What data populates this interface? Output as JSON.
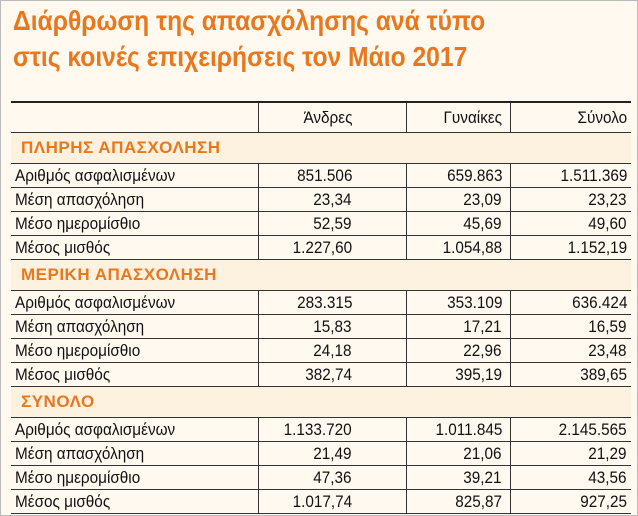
{
  "title": [
    "Διάρθρωση της απασχόλησης ανά τύπο",
    "στις κοινές επιχειρήσεις τον Μάιο 2017"
  ],
  "table": {
    "columns": [
      "Άνδρες",
      "Γυναίκες",
      "Σύνολο"
    ],
    "sections": [
      {
        "title": "ΠΛΗΡΗΣ ΑΠΑΣΧΟΛΗΣΗ",
        "rows": [
          {
            "label": "Αριθμός ασφαλισμένων",
            "values": [
              "851.506",
              "659.863",
              "1.511.369"
            ]
          },
          {
            "label": "Μέση απασχόληση",
            "values": [
              "23,34",
              "23,09",
              "23,23"
            ]
          },
          {
            "label": "Μέσο ημερομίσθιο",
            "values": [
              "52,59",
              "45,69",
              "49,60"
            ]
          },
          {
            "label": "Μέσος μισθός",
            "values": [
              "1.227,60",
              "1.054,88",
              "1.152,19"
            ]
          }
        ]
      },
      {
        "title": "ΜΕΡΙΚΗ ΑΠΑΣΧΟΛΗΣΗ",
        "rows": [
          {
            "label": "Αριθμός ασφαλισμένων",
            "values": [
              "283.315",
              "353.109",
              "636.424"
            ]
          },
          {
            "label": "Μέση απασχόληση",
            "values": [
              "15,83",
              "17,21",
              "16,59"
            ]
          },
          {
            "label": "Μέσο ημερομίσθιο",
            "values": [
              "24,18",
              "22,96",
              "23,48"
            ]
          },
          {
            "label": "Μέσος μισθός",
            "values": [
              "382,74",
              "395,19",
              "389,65"
            ]
          }
        ]
      },
      {
        "title": "ΣΥΝΟΛΟ",
        "rows": [
          {
            "label": "Αριθμός ασφαλισμένων",
            "values": [
              "1.133.720",
              "1.011.845",
              "2.145.565"
            ]
          },
          {
            "label": "Μέση απασχόληση",
            "values": [
              "21,49",
              "21,06",
              "21,29"
            ]
          },
          {
            "label": "Μέσο ημερομίσθιο",
            "values": [
              "47,36",
              "39,21",
              "43,56"
            ]
          },
          {
            "label": "Μέσος μισθός",
            "values": [
              "1.017,74",
              "825,87",
              "927,25"
            ]
          }
        ]
      }
    ]
  }
}
